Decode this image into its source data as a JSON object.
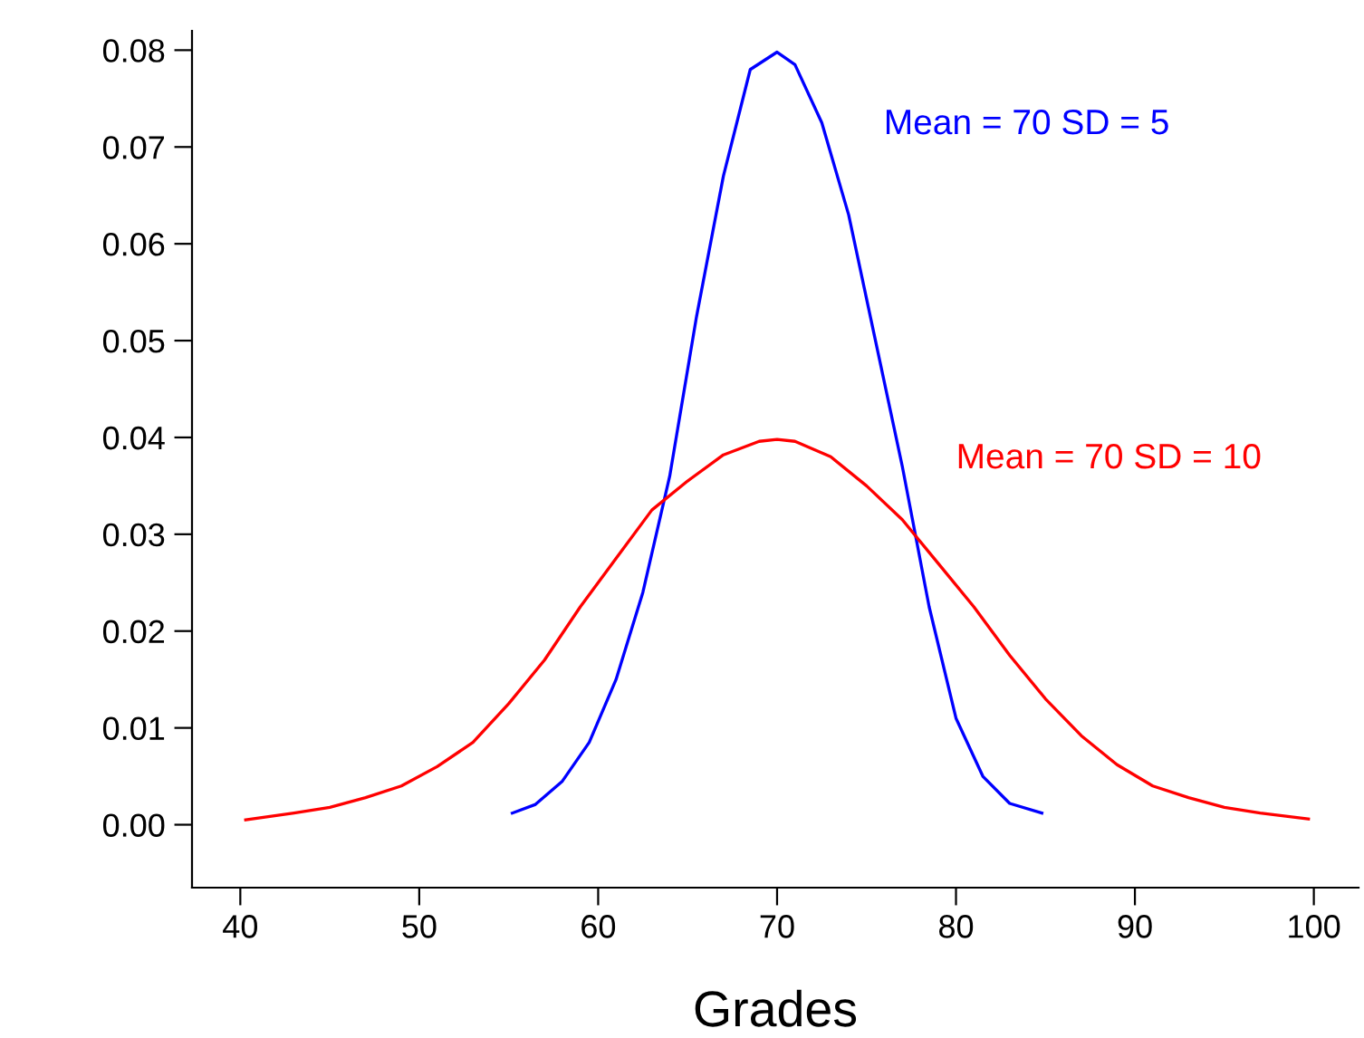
{
  "chart_data": {
    "type": "line",
    "xlabel": "Grades",
    "xlim": [
      37.3,
      102.5
    ],
    "ylim": [
      -0.0065,
      0.082
    ],
    "xticks": [
      40,
      50,
      60,
      70,
      80,
      90,
      100
    ],
    "yticks": [
      {
        "value": 0,
        "label": "0.00"
      },
      {
        "value": 0.01,
        "label": "0.01"
      },
      {
        "value": 0.02,
        "label": "0.02"
      },
      {
        "value": 0.03,
        "label": "0.03"
      },
      {
        "value": 0.04,
        "label": "0.04"
      },
      {
        "value": 0.05,
        "label": "0.05"
      },
      {
        "value": 0.06,
        "label": "0.06"
      },
      {
        "value": 0.07,
        "label": "0.07"
      },
      {
        "value": 0.08,
        "label": "0.08"
      }
    ],
    "grid": false,
    "marker": "none",
    "line_style": "solid",
    "series": [
      {
        "name": "Mean = 70 SD = 5",
        "color": "#0000ff",
        "x": [
          55.2,
          56.5,
          58,
          59.5,
          61,
          62.5,
          64,
          65.5,
          67,
          68.5,
          70,
          71,
          72.5,
          74,
          75.5,
          77,
          78.5,
          80,
          81.5,
          83,
          84.8
        ],
        "values": [
          0.0012,
          0.0021,
          0.0045,
          0.0085,
          0.015,
          0.024,
          0.036,
          0.0525,
          0.067,
          0.078,
          0.0798,
          0.0785,
          0.0725,
          0.063,
          0.05,
          0.037,
          0.0225,
          0.011,
          0.005,
          0.0022,
          0.0012
        ]
      },
      {
        "name": "Mean = 70 SD = 10",
        "color": "#ff0000",
        "x": [
          40.3,
          43,
          45,
          47,
          49,
          51,
          53,
          55,
          57,
          59,
          61,
          63,
          65,
          67,
          69,
          70,
          71,
          73,
          75,
          77,
          79,
          81,
          83,
          85,
          87,
          89,
          91,
          93,
          95,
          97,
          99.7
        ],
        "values": [
          0.0005,
          0.0012,
          0.0018,
          0.0028,
          0.004,
          0.006,
          0.0085,
          0.0125,
          0.017,
          0.0225,
          0.0275,
          0.0325,
          0.0355,
          0.0382,
          0.0396,
          0.0398,
          0.0396,
          0.038,
          0.035,
          0.0315,
          0.027,
          0.0225,
          0.0175,
          0.013,
          0.0092,
          0.0062,
          0.004,
          0.0028,
          0.0018,
          0.0012,
          0.0006
        ]
      }
    ]
  }
}
